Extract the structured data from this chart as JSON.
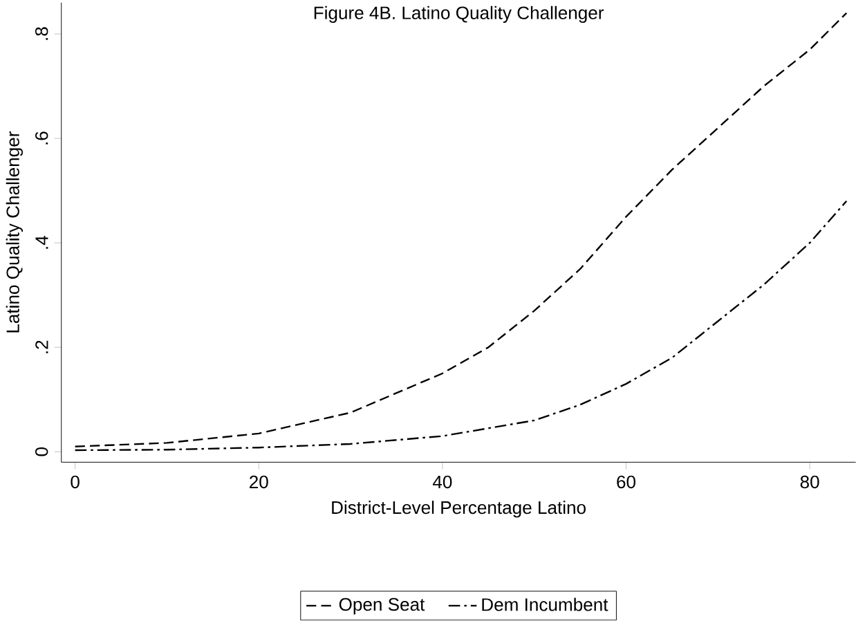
{
  "chart_data": {
    "type": "line",
    "title": "Figure 4B. Latino Quality Challenger",
    "xlabel": "District-Level Percentage Latino",
    "ylabel": "Latino Quality Challenger",
    "xlim": [
      -1.5,
      85
    ],
    "ylim": [
      -0.02,
      0.86
    ],
    "xticks": [
      0,
      20,
      40,
      60,
      80
    ],
    "yticks": [
      0,
      {
        "value": 0.2,
        "label": ".2"
      },
      {
        "value": 0.4,
        "label": ".4"
      },
      {
        "value": 0.6,
        "label": ".6"
      },
      {
        "value": 0.8,
        "label": ".8"
      }
    ],
    "legend": "bottom",
    "grid": false,
    "series": [
      {
        "name": "Open Seat",
        "color": "#000000",
        "line_style": "dashed",
        "x": [
          0,
          10,
          20,
          30,
          40,
          45,
          50,
          55,
          60,
          65,
          70,
          75,
          80,
          84
        ],
        "values": [
          0.01,
          0.017,
          0.035,
          0.075,
          0.15,
          0.2,
          0.27,
          0.35,
          0.45,
          0.54,
          0.62,
          0.7,
          0.77,
          0.84
        ]
      },
      {
        "name": "Dem Incumbent",
        "color": "#000000",
        "line_style": "dashdot",
        "x": [
          0,
          10,
          20,
          30,
          40,
          50,
          55,
          60,
          65,
          70,
          75,
          80,
          84
        ],
        "values": [
          0.003,
          0.004,
          0.008,
          0.015,
          0.03,
          0.06,
          0.09,
          0.13,
          0.18,
          0.25,
          0.32,
          0.4,
          0.48
        ]
      }
    ]
  }
}
